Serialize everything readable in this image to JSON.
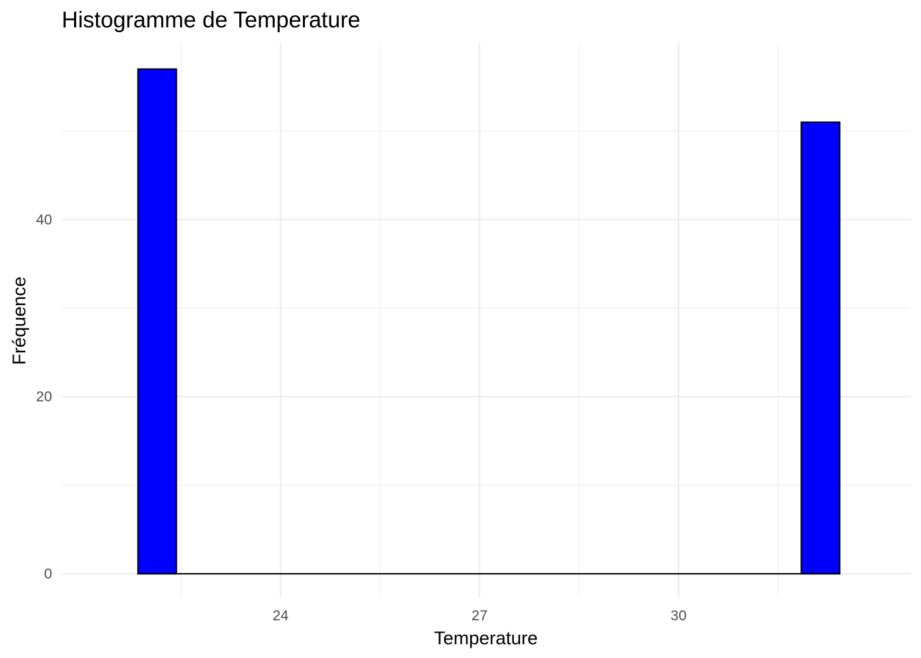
{
  "chart_data": {
    "type": "histogram",
    "title": "Histogramme de Temperature",
    "xlabel": "Temperature",
    "ylabel": "Fréquence",
    "bins": [
      {
        "x0": 21.85,
        "x1": 22.43,
        "count": 57
      },
      {
        "x0": 31.85,
        "x1": 32.43,
        "count": 51
      }
    ],
    "baseline": {
      "x0": 21.85,
      "x1": 32.43
    },
    "xlim": [
      20.7,
      33.5
    ],
    "ylim": [
      -2.7,
      60
    ],
    "x_ticks": [
      24,
      27,
      30
    ],
    "x_tick_labels": [
      "24",
      "27",
      "30"
    ],
    "x_minor_ticks": [
      22.5,
      25.5,
      28.5,
      31.5
    ],
    "y_ticks": [
      0,
      20,
      40
    ],
    "y_tick_labels": [
      "0",
      "20",
      "40"
    ],
    "y_minor_ticks": [
      10,
      30,
      50
    ],
    "grid": true,
    "legend": "none",
    "colors": {
      "bar_fill": "#0000ff",
      "bar_stroke": "#000000",
      "grid": "#ebebeb",
      "tick_text": "#4d4d4d"
    }
  }
}
